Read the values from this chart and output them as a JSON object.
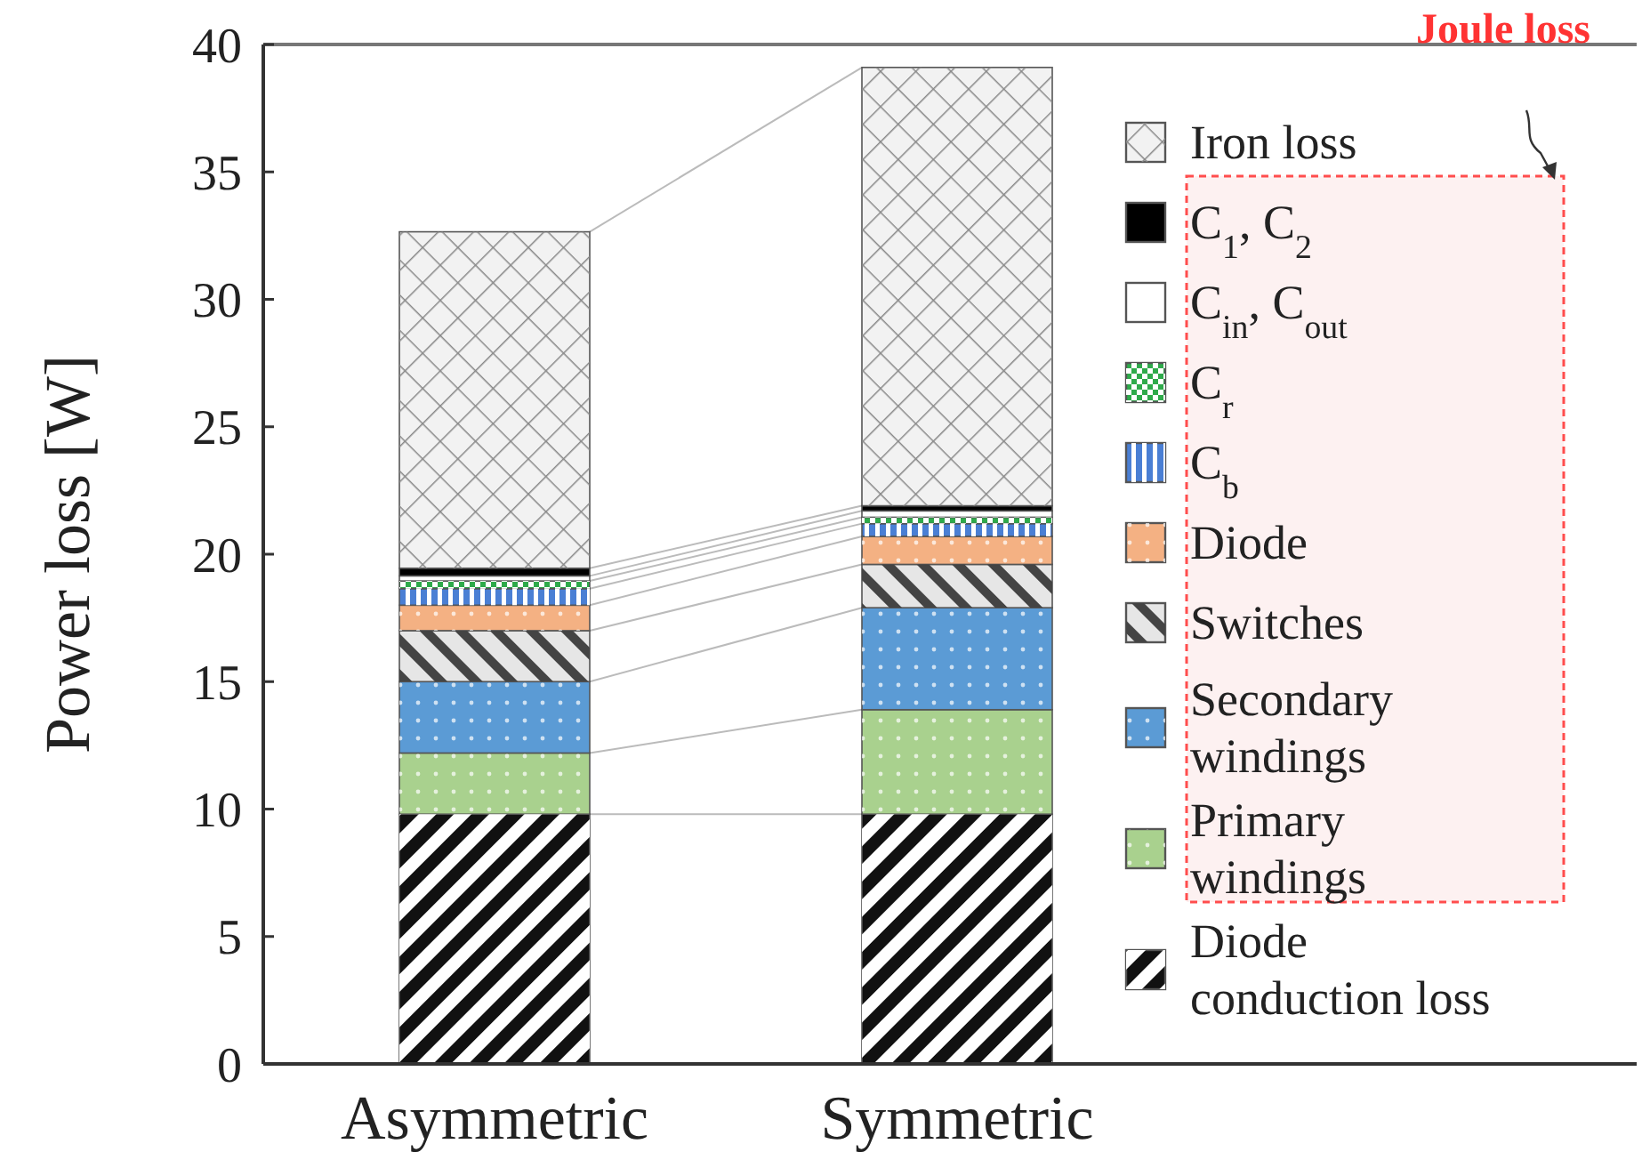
{
  "chart_data": {
    "type": "bar",
    "stacked": true,
    "ylabel": "Power loss [W]",
    "categories": [
      "Asymmetric",
      "Symmetric"
    ],
    "ylim": [
      0,
      40
    ],
    "yticks": [
      0,
      5,
      10,
      15,
      20,
      25,
      30,
      35,
      40
    ],
    "legend": "right",
    "grid": false,
    "annotations": [
      "Joule loss"
    ],
    "series": [
      {
        "name": "Diode conduction loss",
        "color": "#111111",
        "values": [
          9.8,
          9.8
        ]
      },
      {
        "name": "Primary windings",
        "color": "#a9d18e",
        "values": [
          2.4,
          4.1
        ]
      },
      {
        "name": "Secondary windings",
        "color": "#5b9bd5",
        "values": [
          2.8,
          4.0
        ]
      },
      {
        "name": "Switches",
        "color": "#e6e6e6",
        "values": [
          2.0,
          1.7
        ]
      },
      {
        "name": "Diode",
        "color": "#f4b183",
        "values": [
          1.0,
          1.1
        ]
      },
      {
        "name": "C$_{b}$",
        "color": "#4a7fd4",
        "values": [
          0.65,
          0.5
        ]
      },
      {
        "name": "C$_{r}$",
        "color": "#2eaa4a",
        "values": [
          0.3,
          0.25
        ]
      },
      {
        "name": "C$_{in}$, C$_{out}$",
        "color": "#ffffff",
        "values": [
          0.2,
          0.25
        ]
      },
      {
        "name": "C$_{1}$, C$_{2}$",
        "color": "#000000",
        "values": [
          0.3,
          0.2
        ]
      },
      {
        "name": "Iron loss",
        "color": "#f2f2f2",
        "values": [
          13.2,
          17.2
        ]
      }
    ]
  }
}
